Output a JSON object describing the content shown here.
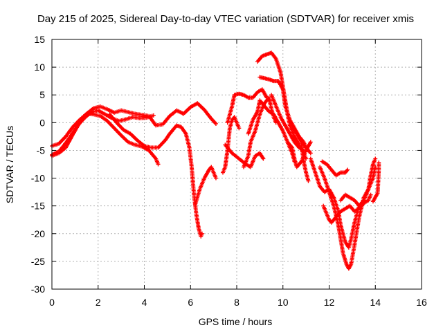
{
  "chart_data": {
    "type": "scatter",
    "title": "Day 215 of 2025, Sidereal Day-to-day VTEC variation (SDTVAR) for receiver xmis",
    "xlabel": "GPS time / hours",
    "ylabel": "SDTVAR / TECUs",
    "xlim": [
      0,
      16
    ],
    "ylim": [
      -30,
      15
    ],
    "xticks": [
      0,
      2,
      4,
      6,
      8,
      10,
      12,
      14,
      16
    ],
    "yticks": [
      -30,
      -25,
      -20,
      -15,
      -10,
      -5,
      0,
      5,
      10,
      15
    ],
    "grid": true,
    "marker": "+",
    "color": "#ff0000",
    "series": [
      {
        "values": [
          [
            0.0,
            -4.2
          ],
          [
            0.3,
            -3.8
          ],
          [
            0.6,
            -2.5
          ],
          [
            0.9,
            -0.8
          ],
          [
            1.2,
            0.5
          ],
          [
            1.5,
            1.6
          ],
          [
            1.8,
            2.6
          ],
          [
            2.1,
            2.9
          ],
          [
            2.4,
            2.4
          ],
          [
            2.7,
            1.8
          ],
          [
            3.0,
            2.2
          ],
          [
            3.3,
            1.9
          ],
          [
            3.6,
            1.6
          ],
          [
            3.9,
            1.4
          ],
          [
            4.2,
            1.2
          ],
          [
            4.5,
            -0.5
          ],
          [
            4.8,
            -0.3
          ],
          [
            5.1,
            1.2
          ],
          [
            5.4,
            2.2
          ],
          [
            5.7,
            1.6
          ],
          [
            6.0,
            2.8
          ],
          [
            6.3,
            3.5
          ],
          [
            6.6,
            2.3
          ],
          [
            6.9,
            0.7
          ],
          [
            7.1,
            -0.2
          ]
        ]
      },
      {
        "values": [
          [
            0.0,
            -5.8
          ],
          [
            0.3,
            -5.2
          ],
          [
            0.5,
            -4.2
          ],
          [
            0.8,
            -2.5
          ],
          [
            1.1,
            -0.6
          ],
          [
            1.4,
            0.8
          ],
          [
            1.7,
            1.9
          ],
          [
            2.0,
            2.2
          ],
          [
            2.3,
            1.5
          ],
          [
            2.6,
            0.8
          ],
          [
            2.9,
            0.3
          ],
          [
            3.2,
            0.6
          ],
          [
            3.5,
            1.0
          ],
          [
            3.8,
            0.8
          ],
          [
            4.1,
            0.9
          ],
          [
            4.4,
            1.3
          ]
        ]
      },
      {
        "values": [
          [
            0.0,
            -6.0
          ],
          [
            0.3,
            -5.5
          ],
          [
            0.6,
            -4.5
          ],
          [
            0.9,
            -2.2
          ],
          [
            1.2,
            0.0
          ],
          [
            1.5,
            1.6
          ],
          [
            1.8,
            1.5
          ],
          [
            2.1,
            1.2
          ],
          [
            2.4,
            0.3
          ],
          [
            2.7,
            -1.0
          ],
          [
            3.0,
            -2.3
          ],
          [
            3.3,
            -3.5
          ],
          [
            3.6,
            -4.0
          ],
          [
            3.9,
            -4.3
          ],
          [
            4.2,
            -5.0
          ],
          [
            4.5,
            -6.5
          ],
          [
            4.6,
            -7.5
          ]
        ]
      },
      {
        "values": [
          [
            2.5,
            1.5
          ],
          [
            2.8,
            0.0
          ],
          [
            3.1,
            -1.3
          ],
          [
            3.4,
            -2.0
          ],
          [
            3.7,
            -3.2
          ],
          [
            4.0,
            -4.2
          ],
          [
            4.3,
            -4.5
          ],
          [
            4.6,
            -4.5
          ],
          [
            4.9,
            -3.2
          ],
          [
            5.1,
            -2.0
          ],
          [
            5.4,
            -0.5
          ],
          [
            5.6,
            -0.8
          ],
          [
            5.8,
            -2.0
          ],
          [
            5.95,
            -4.5
          ],
          [
            6.05,
            -8.0
          ],
          [
            6.15,
            -13.0
          ],
          [
            6.25,
            -16.5
          ],
          [
            6.35,
            -19.0
          ],
          [
            6.45,
            -20.5
          ],
          [
            6.5,
            -20.0
          ]
        ]
      },
      {
        "values": [
          [
            6.2,
            -14.8
          ],
          [
            6.4,
            -12.0
          ],
          [
            6.6,
            -10.0
          ],
          [
            6.8,
            -8.5
          ],
          [
            6.9,
            -8.0
          ],
          [
            7.0,
            -9.0
          ],
          [
            7.1,
            -10.0
          ]
        ]
      },
      {
        "values": [
          [
            7.4,
            -9.0
          ],
          [
            7.5,
            -8.0
          ],
          [
            7.6,
            -5.0
          ],
          [
            7.7,
            -1.0
          ],
          [
            7.8,
            0.5
          ],
          [
            7.9,
            1.0
          ],
          [
            8.0,
            0.0
          ],
          [
            8.1,
            -1.0
          ]
        ]
      },
      {
        "values": [
          [
            7.6,
            0.0
          ],
          [
            7.8,
            3.0
          ],
          [
            7.9,
            5.0
          ],
          [
            8.1,
            5.2
          ],
          [
            8.3,
            5.0
          ],
          [
            8.5,
            4.5
          ],
          [
            8.7,
            4.5
          ],
          [
            8.9,
            5.5
          ],
          [
            9.1,
            6.0
          ],
          [
            9.3,
            4.5
          ]
        ]
      },
      {
        "values": [
          [
            7.5,
            -4.0
          ],
          [
            7.8,
            -5.5
          ],
          [
            8.1,
            -6.5
          ],
          [
            8.4,
            -7.5
          ],
          [
            8.6,
            -8.0
          ],
          [
            8.8,
            -6.0
          ],
          [
            9.0,
            -5.5
          ],
          [
            9.15,
            -6.5
          ]
        ]
      },
      {
        "values": [
          [
            8.3,
            -8.0
          ],
          [
            8.5,
            -6.0
          ],
          [
            8.6,
            -3.5
          ],
          [
            8.8,
            -1.5
          ],
          [
            9.0,
            1.5
          ],
          [
            9.2,
            3.5
          ],
          [
            9.4,
            4.5
          ],
          [
            9.5,
            2.5
          ],
          [
            9.6,
            1.0
          ],
          [
            9.7,
            0.0
          ]
        ]
      },
      {
        "values": [
          [
            8.5,
            -2.0
          ],
          [
            8.7,
            0.5
          ],
          [
            8.9,
            2.0
          ],
          [
            9.0,
            4.0
          ],
          [
            9.2,
            3.0
          ],
          [
            9.4,
            2.0
          ],
          [
            9.6,
            1.5
          ],
          [
            9.8,
            0.0
          ],
          [
            10.0,
            -1.5
          ],
          [
            10.2,
            -3.5
          ],
          [
            10.4,
            -5.5
          ],
          [
            10.5,
            -7.0
          ]
        ]
      },
      {
        "values": [
          [
            8.9,
            11.0
          ],
          [
            9.1,
            12.0
          ],
          [
            9.3,
            12.3
          ],
          [
            9.5,
            12.6
          ],
          [
            9.7,
            11.5
          ],
          [
            9.9,
            9.0
          ],
          [
            10.0,
            6.5
          ],
          [
            10.1,
            4.0
          ],
          [
            10.2,
            1.5
          ],
          [
            10.3,
            -0.5
          ],
          [
            10.5,
            -2.5
          ],
          [
            10.7,
            -4.0
          ],
          [
            10.9,
            -5.5
          ],
          [
            11.0,
            -6.5
          ]
        ]
      },
      {
        "values": [
          [
            9.0,
            8.2
          ],
          [
            9.2,
            8.0
          ],
          [
            9.4,
            7.8
          ],
          [
            9.6,
            7.5
          ],
          [
            9.8,
            7.5
          ],
          [
            10.0,
            6.0
          ],
          [
            10.1,
            3.0
          ],
          [
            10.3,
            0.5
          ],
          [
            10.5,
            -1.0
          ],
          [
            10.7,
            -2.5
          ],
          [
            10.9,
            -3.5
          ],
          [
            11.0,
            -4.5
          ]
        ]
      },
      {
        "values": [
          [
            9.5,
            5.0
          ],
          [
            9.7,
            3.0
          ],
          [
            9.9,
            1.0
          ],
          [
            10.1,
            -0.5
          ],
          [
            10.3,
            -2.0
          ],
          [
            10.5,
            -3.5
          ],
          [
            10.7,
            -4.5
          ],
          [
            10.9,
            -5.0
          ]
        ]
      },
      {
        "values": [
          [
            10.4,
            -0.5
          ],
          [
            10.6,
            -2.0
          ],
          [
            10.8,
            -3.5
          ],
          [
            11.0,
            -4.5
          ],
          [
            11.2,
            -5.5
          ]
        ]
      },
      {
        "values": [
          [
            10.2,
            -3.5
          ],
          [
            10.4,
            -4.5
          ],
          [
            10.5,
            -6.5
          ],
          [
            10.6,
            -8.0
          ],
          [
            10.8,
            -7.0
          ],
          [
            11.0,
            -5.0
          ],
          [
            11.2,
            -3.5
          ]
        ]
      },
      {
        "values": [
          [
            10.8,
            -4.0
          ],
          [
            10.9,
            -7.0
          ],
          [
            11.0,
            -9.0
          ],
          [
            11.1,
            -10.5
          ]
        ]
      },
      {
        "values": [
          [
            11.2,
            -6.5
          ],
          [
            11.4,
            -9.0
          ],
          [
            11.6,
            -11.5
          ],
          [
            11.8,
            -12.5
          ],
          [
            12.0,
            -12.0
          ],
          [
            12.2,
            -13.5
          ],
          [
            12.4,
            -16.0
          ],
          [
            12.5,
            -18.5
          ],
          [
            12.7,
            -21.5
          ],
          [
            12.85,
            -22.5
          ],
          [
            12.95,
            -21.0
          ],
          [
            13.1,
            -18.0
          ],
          [
            13.3,
            -15.0
          ]
        ]
      },
      {
        "values": [
          [
            11.6,
            -8.0
          ],
          [
            11.8,
            -10.0
          ],
          [
            12.0,
            -12.5
          ],
          [
            12.2,
            -15.0
          ],
          [
            12.4,
            -18.5
          ],
          [
            12.5,
            -21.0
          ],
          [
            12.6,
            -23.5
          ],
          [
            12.75,
            -25.5
          ],
          [
            12.85,
            -26.3
          ],
          [
            12.95,
            -25.5
          ],
          [
            13.1,
            -22.0
          ],
          [
            13.3,
            -17.0
          ],
          [
            13.5,
            -13.5
          ],
          [
            13.7,
            -12.0
          ],
          [
            13.9,
            -10.0
          ],
          [
            14.0,
            -8.0
          ]
        ]
      },
      {
        "values": [
          [
            11.7,
            -7.0
          ],
          [
            11.9,
            -7.5
          ],
          [
            12.1,
            -8.5
          ],
          [
            12.3,
            -9.5
          ],
          [
            12.5,
            -9.0
          ],
          [
            12.7,
            -9.0
          ],
          [
            12.8,
            -8.5
          ]
        ]
      },
      {
        "values": [
          [
            11.75,
            -15.0
          ],
          [
            11.9,
            -16.5
          ],
          [
            12.0,
            -17.5
          ],
          [
            12.1,
            -18.0
          ],
          [
            12.3,
            -17.0
          ],
          [
            12.5,
            -16.0
          ],
          [
            12.7,
            -15.5
          ],
          [
            12.9,
            -15.0
          ],
          [
            13.1,
            -16.0
          ],
          [
            13.3,
            -15.5
          ],
          [
            13.5,
            -14.5
          ],
          [
            13.7,
            -14.0
          ],
          [
            13.8,
            -13.0
          ]
        ]
      },
      {
        "values": [
          [
            12.5,
            -14.0
          ],
          [
            12.7,
            -13.0
          ],
          [
            12.9,
            -13.5
          ],
          [
            13.1,
            -14.0
          ],
          [
            13.3,
            -15.0
          ],
          [
            13.5,
            -14.0
          ],
          [
            13.7,
            -12.0
          ],
          [
            13.8,
            -9.5
          ],
          [
            13.9,
            -7.5
          ],
          [
            14.0,
            -6.5
          ]
        ]
      },
      {
        "values": [
          [
            13.9,
            -14.2
          ],
          [
            14.1,
            -12.7
          ],
          [
            14.15,
            -8.5
          ],
          [
            14.15,
            -7.2
          ]
        ]
      }
    ]
  }
}
